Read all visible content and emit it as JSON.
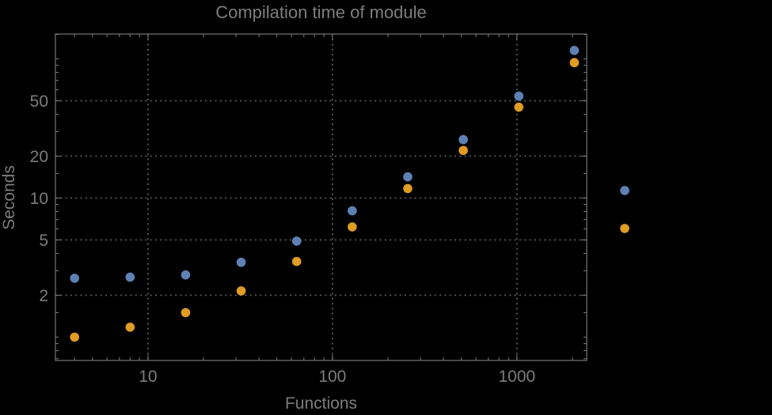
{
  "chart_data": {
    "type": "scatter",
    "title": "Compilation time of module",
    "xlabel": "Functions",
    "ylabel": "Seconds",
    "x_scale": "log",
    "y_scale": "log",
    "x": [
      4,
      8,
      16,
      32,
      64,
      128,
      256,
      512,
      1024,
      2048
    ],
    "series": [
      {
        "name": "blue",
        "color": "#5e81b5",
        "values": [
          2.65,
          2.7,
          2.8,
          3.45,
          4.9,
          8.1,
          14.2,
          26.3,
          54,
          115
        ]
      },
      {
        "name": "orange",
        "color": "#e19c24",
        "values": [
          1.0,
          1.18,
          1.5,
          2.15,
          3.5,
          6.2,
          11.7,
          22,
          45,
          94
        ]
      }
    ],
    "x_tick_labels": [
      "10",
      "100",
      "1000"
    ],
    "x_ticks_labeled": [
      10,
      100,
      1000
    ],
    "y_tick_labels": [
      "2",
      "5",
      "10",
      "20",
      "50"
    ],
    "y_ticks_labeled": [
      2,
      5,
      10,
      20,
      50
    ],
    "x_range": [
      3.15,
      2390
    ],
    "y_range": [
      0.68,
      151
    ],
    "grid": "dotted gray gridlines at labeled ticks, frame on all four sides with inward minor ticks",
    "legend": {
      "position": "right-outside",
      "entries": [
        {
          "marker_color": "#5e81b5",
          "label": ""
        },
        {
          "marker_color": "#e19c24",
          "label": ""
        }
      ]
    }
  },
  "colors": {
    "background": "#000000",
    "frame": "#747474",
    "gridline": "#5c5c5c",
    "text": "#7d7d7d",
    "series_blue": "#5e81b5",
    "series_orange": "#e19c24"
  }
}
